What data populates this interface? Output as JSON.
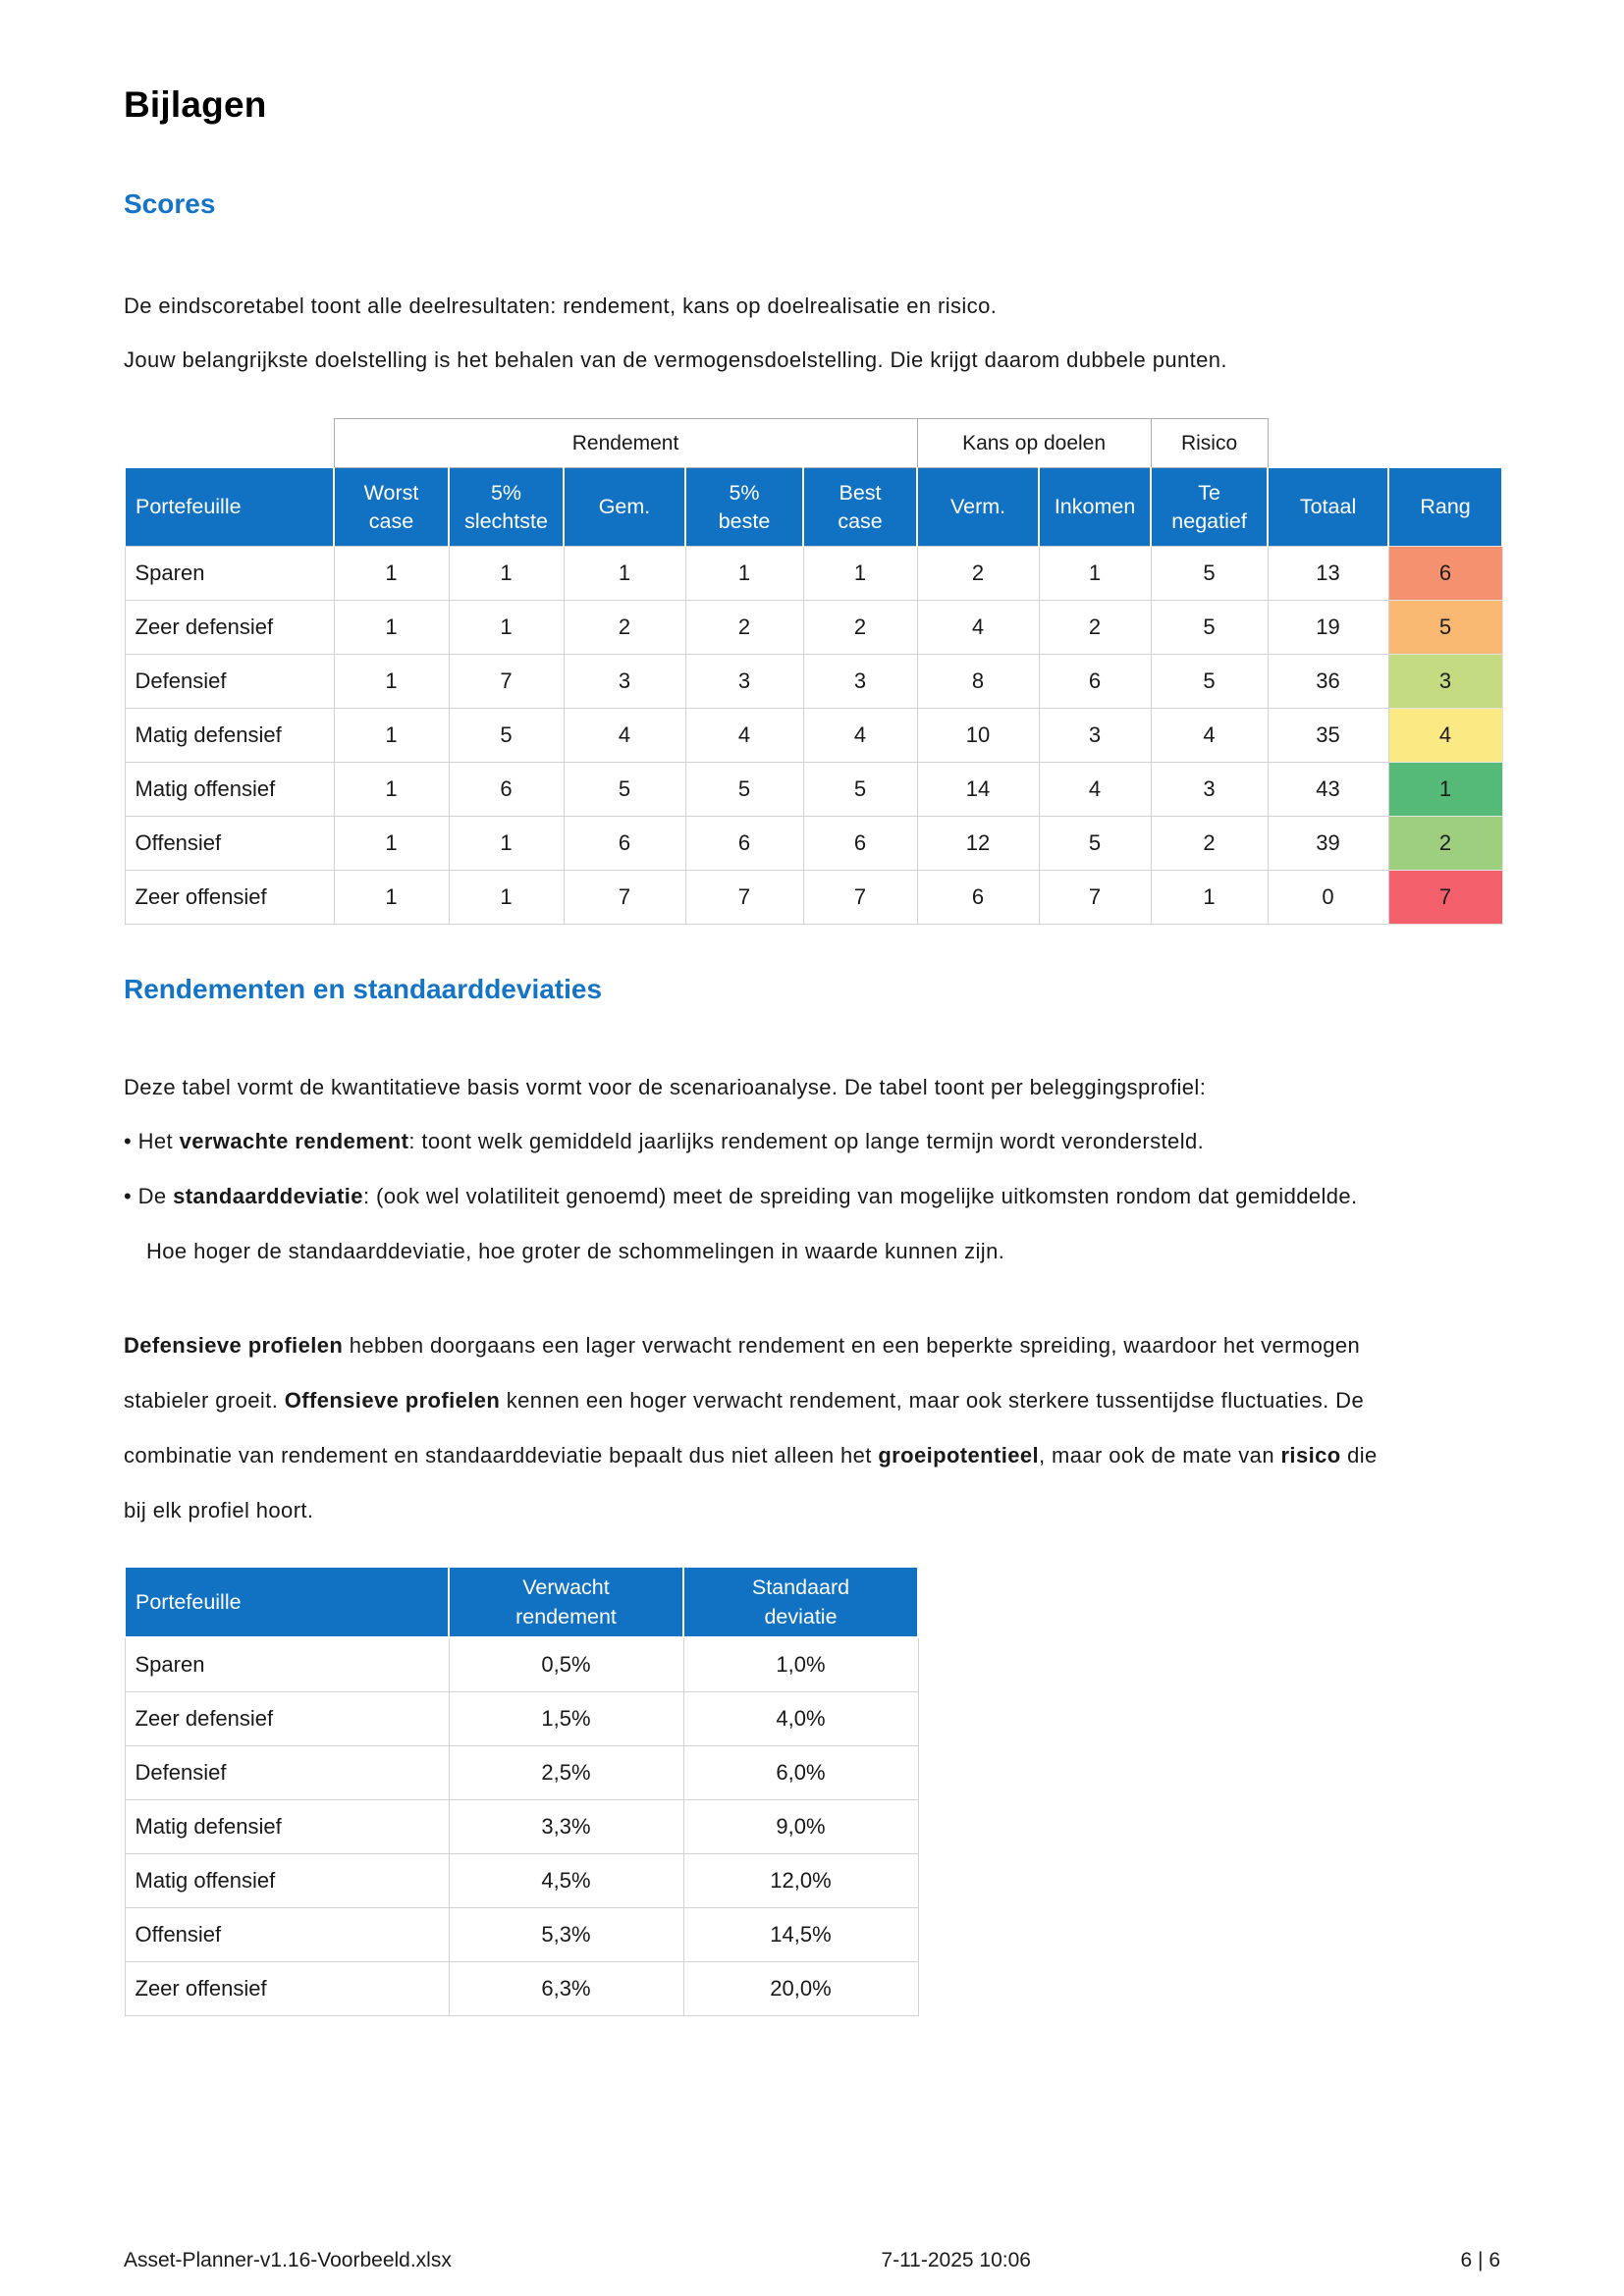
{
  "title": "Bijlagen",
  "bullet_char": "•",
  "colors": {
    "heading_blue": "#1574C6",
    "header_blue": "#1172C4",
    "rank_colors": {
      "1": "#55B978",
      "2": "#9DCF7E",
      "3": "#C5DB81",
      "4": "#FBE983",
      "5": "#FAB973",
      "6": "#F6916F",
      "7": "#F3606B"
    }
  },
  "scores": {
    "heading": "Scores",
    "intro_lines": [
      "De eindscoretabel toont alle deelresultaten: rendement, kans op doelrealisatie en risico.",
      "Jouw belangrijkste doelstelling is het behalen van de vermogensdoelstelling. Die krijgt daarom dubbele punten."
    ],
    "table": {
      "group_row": [
        {
          "label": "",
          "span": 1
        },
        {
          "label": "Rendement",
          "span": 5
        },
        {
          "label": "Kans op doelen",
          "span": 2
        },
        {
          "label": "Risico",
          "span": 1
        },
        {
          "label": "",
          "span": 1
        },
        {
          "label": "",
          "span": 1
        }
      ],
      "columns": [
        [
          "Portefeuille"
        ],
        [
          "Worst",
          "case"
        ],
        [
          "5%",
          "slechtste"
        ],
        [
          "Gem."
        ],
        [
          "5%",
          "beste"
        ],
        [
          "Best",
          "case"
        ],
        [
          "Verm."
        ],
        [
          "Inkomen"
        ],
        [
          "Te",
          "negatief"
        ],
        [
          "Totaal"
        ],
        [
          "Rang"
        ]
      ],
      "rows": [
        {
          "name": "Sparen",
          "values": [
            "1",
            "1",
            "1",
            "1",
            "1",
            "2",
            "1",
            "5",
            "13"
          ],
          "rank": "6"
        },
        {
          "name": "Zeer defensief",
          "values": [
            "1",
            "1",
            "2",
            "2",
            "2",
            "4",
            "2",
            "5",
            "19"
          ],
          "rank": "5"
        },
        {
          "name": "Defensief",
          "values": [
            "1",
            "7",
            "3",
            "3",
            "3",
            "8",
            "6",
            "5",
            "36"
          ],
          "rank": "3"
        },
        {
          "name": "Matig defensief",
          "values": [
            "1",
            "5",
            "4",
            "4",
            "4",
            "10",
            "3",
            "4",
            "35"
          ],
          "rank": "4"
        },
        {
          "name": "Matig offensief",
          "values": [
            "1",
            "6",
            "5",
            "5",
            "5",
            "14",
            "4",
            "3",
            "43"
          ],
          "rank": "1"
        },
        {
          "name": "Offensief",
          "values": [
            "1",
            "1",
            "6",
            "6",
            "6",
            "12",
            "5",
            "2",
            "39"
          ],
          "rank": "2"
        },
        {
          "name": "Zeer offensief",
          "values": [
            "1",
            "1",
            "7",
            "7",
            "7",
            "6",
            "7",
            "1",
            "0"
          ],
          "rank": "7"
        }
      ]
    }
  },
  "rendementen": {
    "heading": "Rendementen en standaarddeviaties",
    "intro": "Deze tabel vormt de kwantitatieve basis vormt voor de scenarioanalyse. De tabel toont per beleggingsprofiel:",
    "bullets": [
      {
        "segments": [
          {
            "t": "Het ",
            "b": false
          },
          {
            "t": "verwachte rendement",
            "b": true
          },
          {
            "t": ": toont welk gemiddeld jaarlijks rendement op lange termijn wordt verondersteld.",
            "b": false
          }
        ]
      },
      {
        "segments": [
          {
            "t": "De ",
            "b": false
          },
          {
            "t": "standaarddeviatie",
            "b": true
          },
          {
            "t": ": (ook wel volatiliteit genoemd) meet de spreiding van mogelijke uitkomsten rondom dat gemiddelde. Hoe hoger de standaarddeviatie, hoe groter de schommelingen in waarde kunnen zijn.",
            "b": false
          }
        ]
      }
    ],
    "paragraph": {
      "segments": [
        {
          "t": "Defensieve profielen",
          "b": true
        },
        {
          "t": " hebben doorgaans een lager verwacht rendement en een beperkte spreiding, waardoor het vermogen stabieler groeit. ",
          "b": false
        },
        {
          "t": "Offensieve profielen",
          "b": true
        },
        {
          "t": " kennen een hoger verwacht rendement, maar ook sterkere tussentijdse fluctuaties. De combinatie van rendement en standaarddeviatie bepaalt dus niet alleen het ",
          "b": false
        },
        {
          "t": "groeipotentieel",
          "b": true
        },
        {
          "t": ", maar ook de mate van ",
          "b": false
        },
        {
          "t": "risico",
          "b": true
        },
        {
          "t": " die bij elk profiel hoort.",
          "b": false
        }
      ]
    },
    "table": {
      "columns": [
        [
          "Portefeuille"
        ],
        [
          "Verwacht",
          "rendement"
        ],
        [
          "Standaard",
          "deviatie"
        ]
      ],
      "rows": [
        [
          "Sparen",
          "0,5%",
          "1,0%"
        ],
        [
          "Zeer defensief",
          "1,5%",
          "4,0%"
        ],
        [
          "Defensief",
          "2,5%",
          "6,0%"
        ],
        [
          "Matig defensief",
          "3,3%",
          "9,0%"
        ],
        [
          "Matig offensief",
          "4,5%",
          "12,0%"
        ],
        [
          "Offensief",
          "5,3%",
          "14,5%"
        ],
        [
          "Zeer offensief",
          "6,3%",
          "20,0%"
        ]
      ]
    }
  },
  "footer": {
    "filename": "Asset-Planner-v1.16-Voorbeeld.xlsx",
    "datetime": "7-11-2025 10:06",
    "page": "6 | 6"
  }
}
